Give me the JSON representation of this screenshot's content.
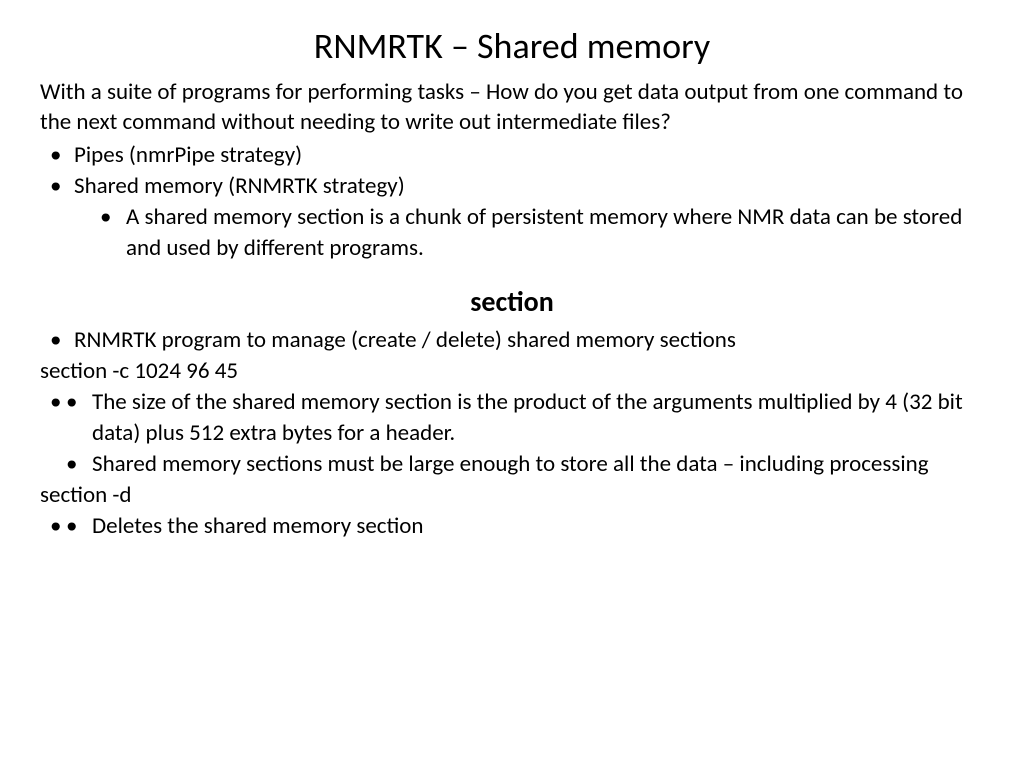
{
  "title": "RNMRTK – Shared memory",
  "intro": "With a suite of programs for performing tasks – How do you get data output from one command to the next command without needing to write out intermediate files?",
  "bullets1": {
    "pipes": "Pipes (nmrPipe strategy)",
    "shared": "Shared memory (RNMRTK strategy)",
    "shared_sub": "A shared memory section is a chunk of persistent memory where NMR data can be stored and used by different programs."
  },
  "subheading": "section",
  "bullets2": {
    "manage": "RNMRTK program to manage (create / delete) shared memory sections",
    "cmd_c": "section -c 1024 96 45",
    "size": "The size of the shared memory section is the product of the arguments multiplied by 4 (32 bit data) plus 512 extra bytes for a header.",
    "large": "Shared memory sections must be large enough to store all the data – including processing",
    "cmd_d": "section -d",
    "delete": "Deletes the shared memory section"
  },
  "style": {
    "bg": "#ffffff",
    "text_color": "#000000",
    "title_fontsize": 36,
    "body_fontsize": 23,
    "subheading_fontsize": 28,
    "font_family": "Calibri"
  }
}
